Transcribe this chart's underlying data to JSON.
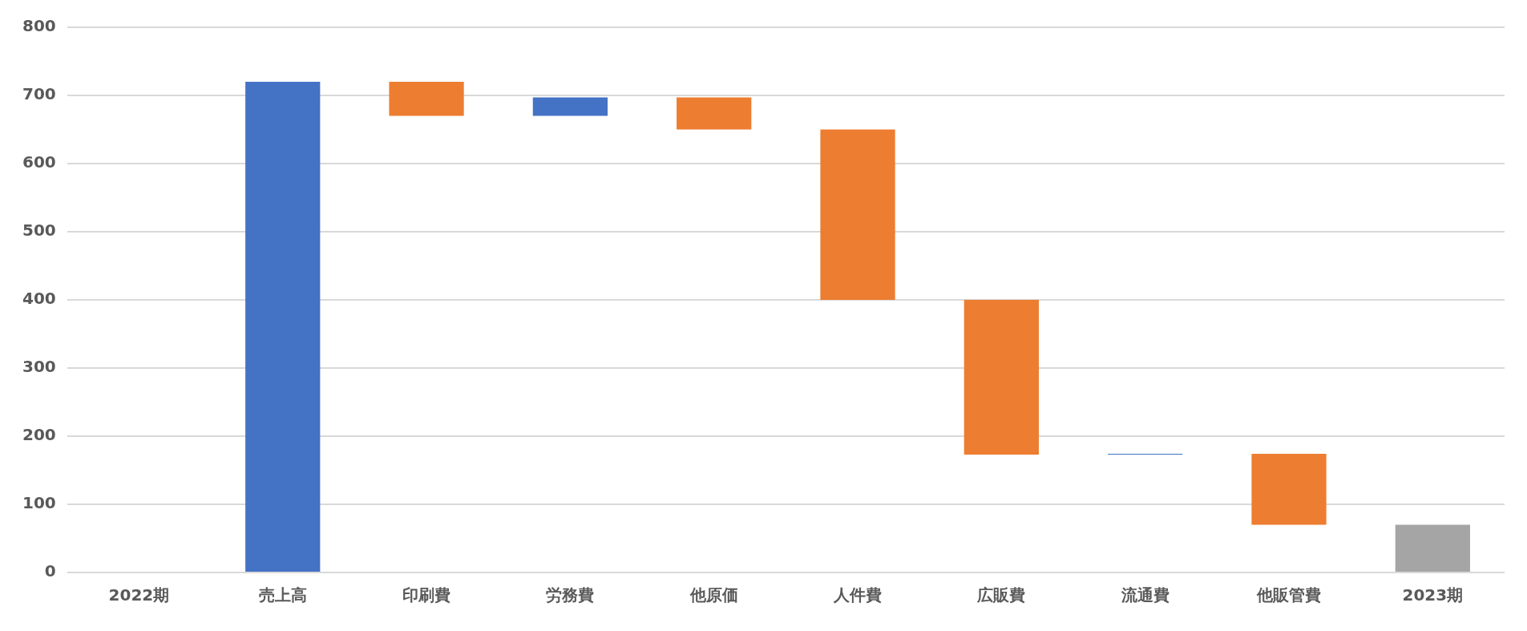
{
  "chart_data": {
    "type": "bar",
    "categories": [
      "2022期",
      "売上高",
      "印刷費",
      "労務費",
      "他原価",
      "人件費",
      "広販費",
      "流通費",
      "他販管費",
      "2023期"
    ],
    "base": [
      null,
      0,
      720,
      670,
      697,
      650,
      400,
      173,
      174,
      0
    ],
    "values": [
      null,
      720,
      -50,
      27,
      -47,
      -250,
      -227,
      1,
      -104,
      70
    ],
    "colors": [
      "#4472c4",
      "#4472c4",
      "#ed7d31",
      "#4472c4",
      "#ed7d31",
      "#ed7d31",
      "#ed7d31",
      "#4472c4",
      "#ed7d31",
      "#a5a5a5"
    ],
    "ylim": [
      0,
      800
    ],
    "yticks": [
      0,
      100,
      200,
      300,
      400,
      500,
      600,
      700,
      800
    ],
    "grid": "y",
    "legend": false
  }
}
